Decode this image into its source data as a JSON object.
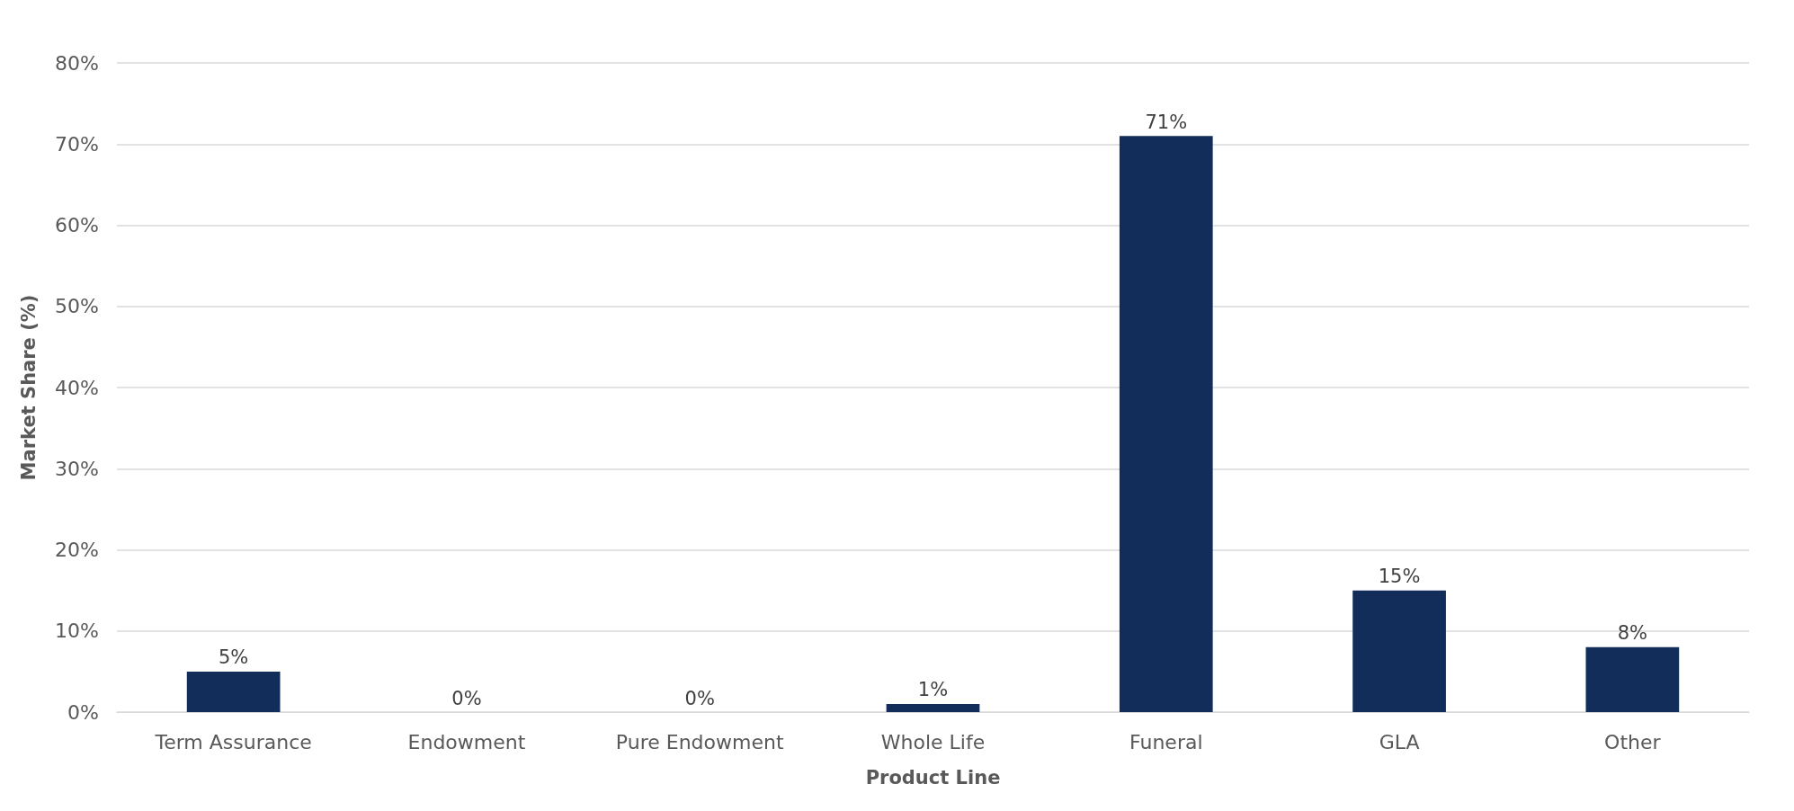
{
  "chart_data": {
    "type": "bar",
    "xlabel": "Product Line",
    "ylabel": "Market Share (%)",
    "categories": [
      "Term Assurance",
      "Endowment",
      "Pure Endowment",
      "Whole Life",
      "Funeral",
      "GLA",
      "Other"
    ],
    "values": [
      5,
      0,
      0,
      1,
      71,
      15,
      8
    ],
    "value_labels": [
      "5%",
      "0%",
      "0%",
      "1%",
      "71%",
      "15%",
      "8%"
    ],
    "color": "#132d5a",
    "ylim": [
      0,
      80
    ],
    "yticks": [
      {
        "value": 0,
        "label": "0%"
      },
      {
        "value": 10,
        "label": "10%"
      },
      {
        "value": 20,
        "label": "20%"
      },
      {
        "value": 30,
        "label": "30%"
      },
      {
        "value": 40,
        "label": "40%"
      },
      {
        "value": 50,
        "label": "50%"
      },
      {
        "value": 60,
        "label": "60%"
      },
      {
        "value": 70,
        "label": "70%"
      },
      {
        "value": 80,
        "label": "80%"
      }
    ],
    "grid": "y"
  }
}
